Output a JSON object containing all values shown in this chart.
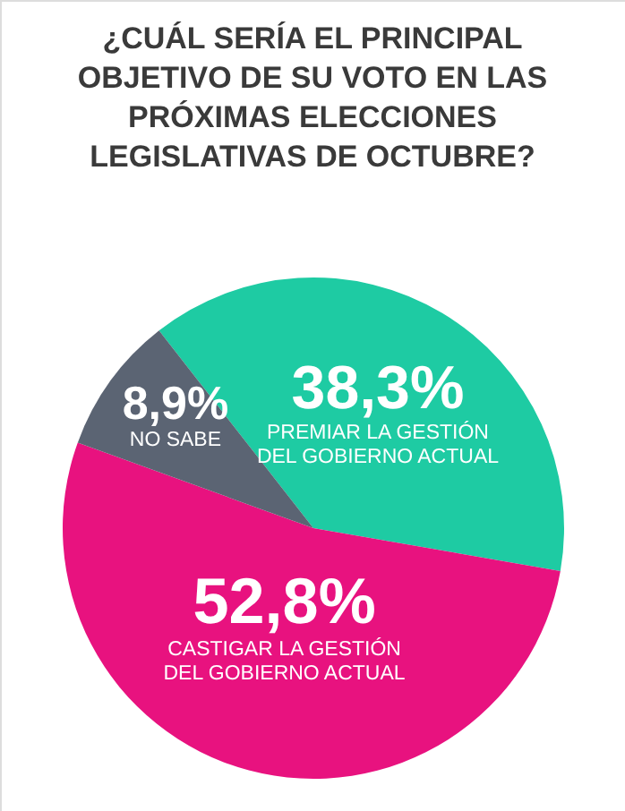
{
  "chart_data": {
    "type": "pie",
    "title": "¿CUÁL SERÍA EL PRINCIPAL OBJETIVO DE SU VOTO EN LAS PRÓXIMAS ELECCIONES LEGISLATIVAS DE OCTUBRE?",
    "categories": [
      "PREMIAR LA GESTIÓN\nDEL GOBIERNO ACTUAL",
      "CASTIGAR LA GESTIÓN\nDEL GOBIERNO ACTUAL",
      "NO SABE"
    ],
    "values": [
      38.3,
      52.8,
      8.9
    ],
    "value_labels": [
      "38,3%",
      "52,8%",
      "8,9%"
    ],
    "colors": [
      "#1ecba3",
      "#e8127f",
      "#5b6473"
    ]
  }
}
